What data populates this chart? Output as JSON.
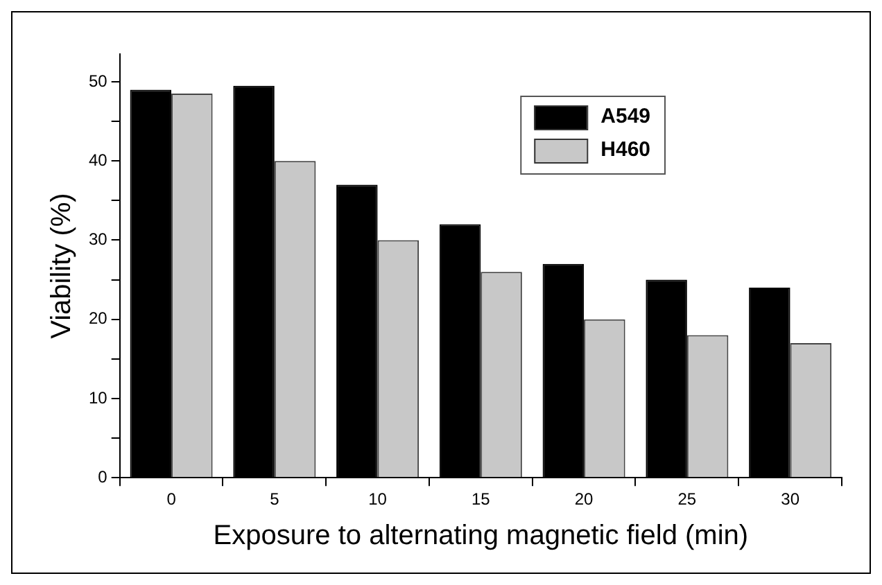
{
  "chart_data": {
    "type": "bar",
    "xlabel": "Exposure to alternating magnetic field (min)",
    "ylabel": "Viability (%)",
    "categories": [
      "0",
      "5",
      "10",
      "15",
      "20",
      "25",
      "30"
    ],
    "series": [
      {
        "name": "A549",
        "color": "#000000",
        "values": [
          49,
          49.5,
          37,
          32,
          27,
          25,
          24
        ]
      },
      {
        "name": "H460",
        "color": "#c8c8c8",
        "values": [
          48.5,
          40,
          30,
          26,
          20,
          18,
          17
        ]
      }
    ],
    "ylim": [
      0,
      53.5
    ],
    "yticks": [
      0,
      {
        "value": 5,
        "label": null
      },
      10,
      {
        "value": 15,
        "label": null
      },
      20,
      {
        "value": 25,
        "label": null
      },
      30,
      {
        "value": 35,
        "label": null
      },
      40,
      {
        "value": 45,
        "label": null
      },
      50
    ],
    "grid": false,
    "legend": "top right"
  }
}
